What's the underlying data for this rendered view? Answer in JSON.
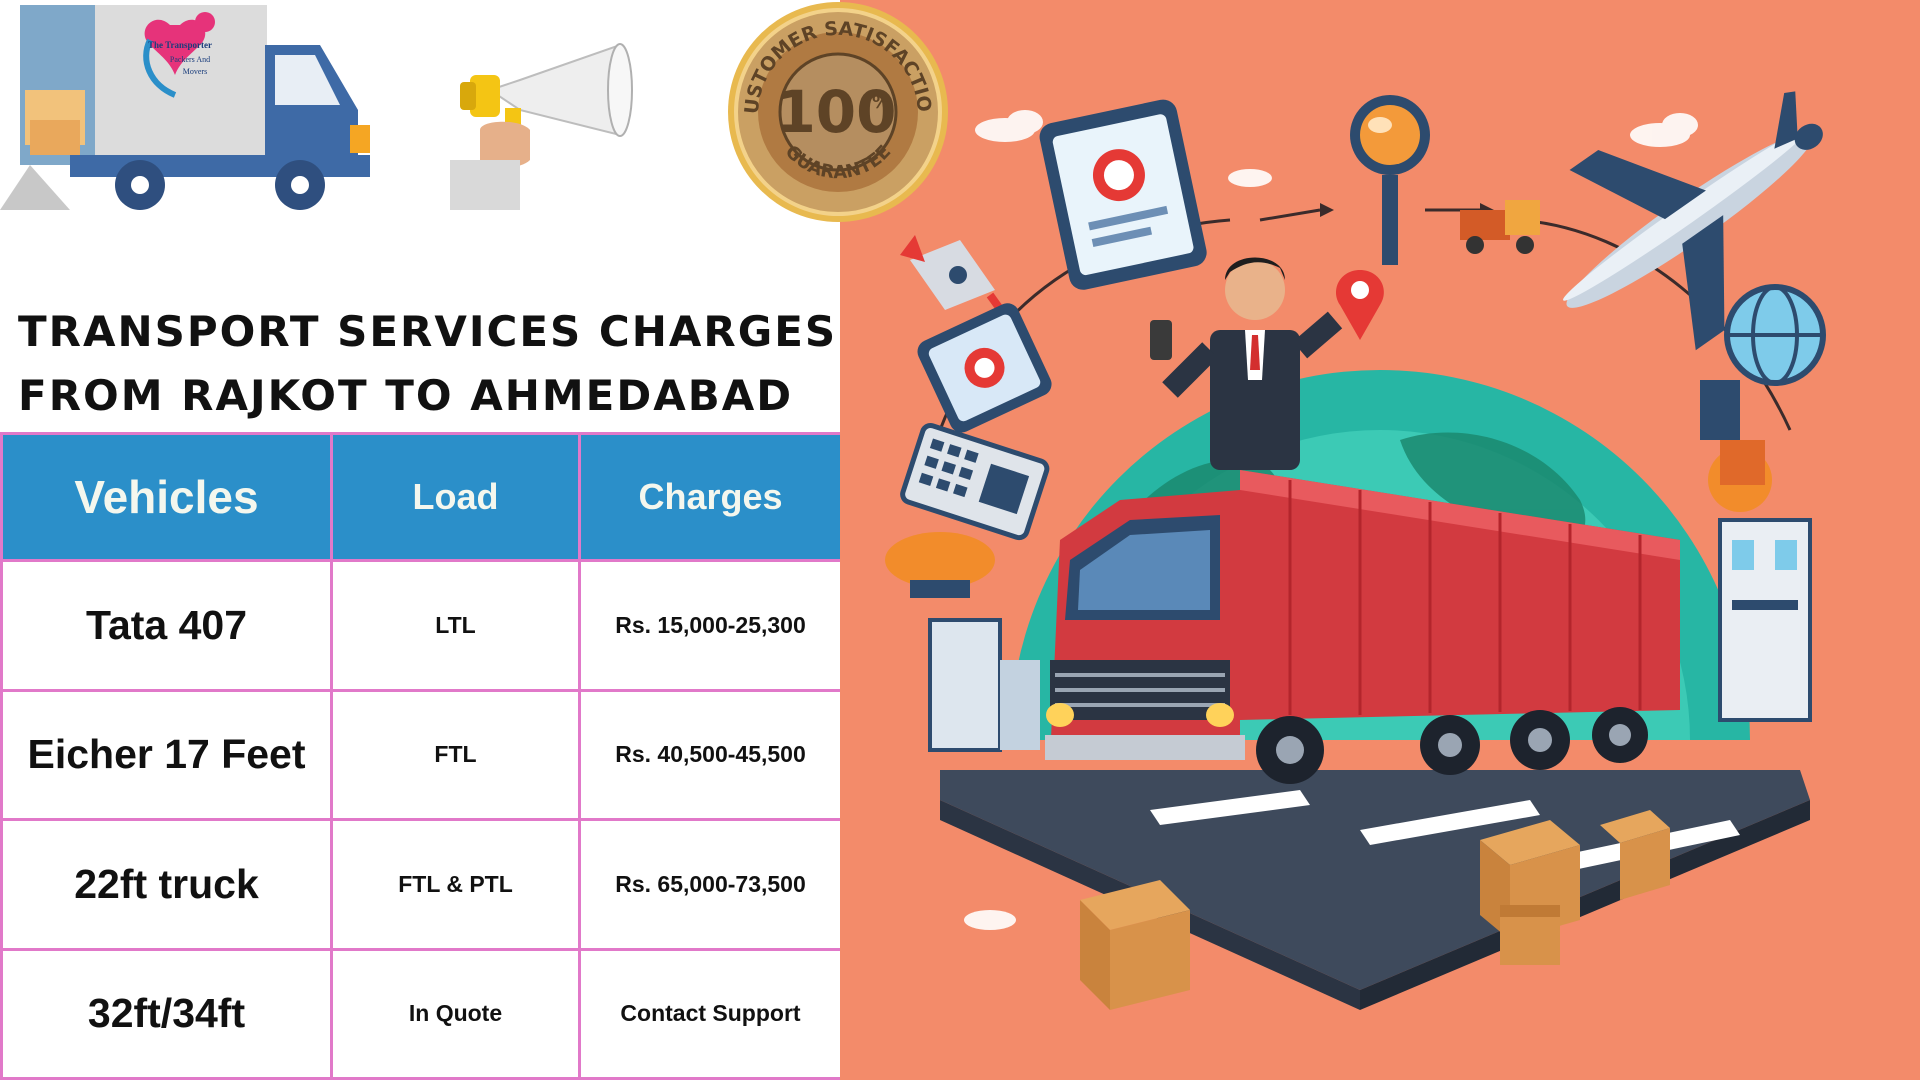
{
  "badge": {
    "percent": "100",
    "percent_symbol": "%",
    "top_text": "CUSTOMER SATISFACTION",
    "bottom_text": "GUARANTEE"
  },
  "logo": {
    "lines": [
      "The Transporter",
      "Packers And",
      "Movers"
    ]
  },
  "heading": {
    "line1": "TRANSPORT SERVICES CHARGES",
    "line2": "FROM RAJKOT TO AHMEDABAD"
  },
  "table": {
    "headers": [
      "Vehicles",
      "Load",
      "Charges"
    ],
    "rows": [
      {
        "vehicle": "Tata 407",
        "load": "LTL",
        "charges": "Rs. 15,000-25,300"
      },
      {
        "vehicle": "Eicher 17 Feet",
        "load": "FTL",
        "charges": "Rs. 40,500-45,500"
      },
      {
        "vehicle": "22ft truck",
        "load": "FTL & PTL",
        "charges": "Rs. 65,000-73,500"
      },
      {
        "vehicle": "32ft/34ft",
        "load": "In Quote",
        "charges": "Contact Support"
      }
    ]
  },
  "colors": {
    "header_blue": "#2b8fc9",
    "border_pink": "#e179c9",
    "background_coral": "#f38b6a",
    "badge_gold": "#d9a441"
  }
}
